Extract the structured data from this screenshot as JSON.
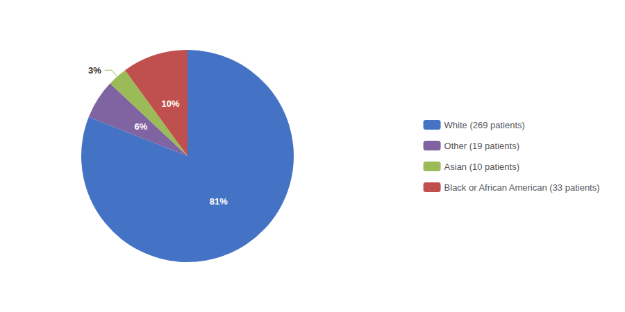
{
  "chart_data": {
    "type": "pie",
    "categories": [
      "White (269 patients)",
      "Other (19 patients)",
      "Asian (10 patients)",
      "Black or African American (33 patients)"
    ],
    "values": [
      81,
      6,
      3,
      10
    ],
    "value_labels": [
      "81%",
      "6%",
      "3%",
      "10%"
    ],
    "colors": [
      "#4472C4",
      "#8064A2",
      "#9BBB59",
      "#C0504D"
    ],
    "data_labels": true,
    "legend": "right"
  }
}
